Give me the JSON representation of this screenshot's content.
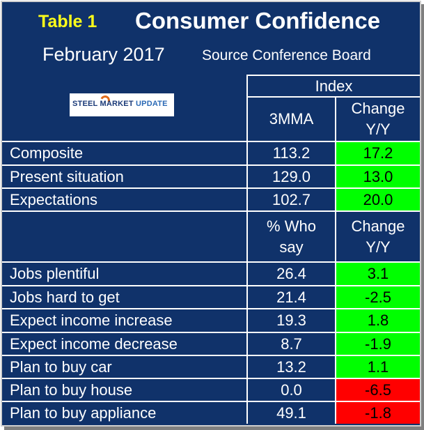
{
  "header": {
    "table_label": "Table 1",
    "title": "Consumer Confidence",
    "month": "February 2017",
    "source": "Source Conference Board"
  },
  "logo": {
    "text_main": "STEEL MARKET",
    "text_sub": "UPDATE"
  },
  "columns": {
    "index_group": "Index",
    "value_1": "3MMA",
    "change_1_line1": "Change",
    "change_1_line2": "Y/Y",
    "value_2_line1": "% Who",
    "value_2_line2": "say",
    "change_2_line1": "Change",
    "change_2_line2": "Y/Y"
  },
  "colors": {
    "background": "#10326a",
    "positive": "#00ff00",
    "negative": "#ff0000",
    "highlight": "#ffff1a"
  },
  "index_rows": [
    {
      "label": "Composite",
      "value": "113.2",
      "change": "17.2",
      "status": "green"
    },
    {
      "label": "Present situation",
      "value": "129.0",
      "change": "13.0",
      "status": "green"
    },
    {
      "label": "Expectations",
      "value": "102.7",
      "change": "20.0",
      "status": "green"
    }
  ],
  "survey_rows": [
    {
      "label": "Jobs plentiful",
      "value": "26.4",
      "change": "3.1",
      "status": "green"
    },
    {
      "label": "Jobs hard to get",
      "value": "21.4",
      "change": "-2.5",
      "status": "green"
    },
    {
      "label": "Expect income increase",
      "value": "19.3",
      "change": "1.8",
      "status": "green"
    },
    {
      "label": "Expect income decrease",
      "value": "8.7",
      "change": "-1.9",
      "status": "green"
    },
    {
      "label": "Plan to buy car",
      "value": "13.2",
      "change": "1.1",
      "status": "green"
    },
    {
      "label": "Plan to buy house",
      "value": "0.0",
      "change": "-6.5",
      "status": "red"
    },
    {
      "label": "Plan to buy appliance",
      "value": "49.1",
      "change": "-1.8",
      "status": "red"
    }
  ]
}
